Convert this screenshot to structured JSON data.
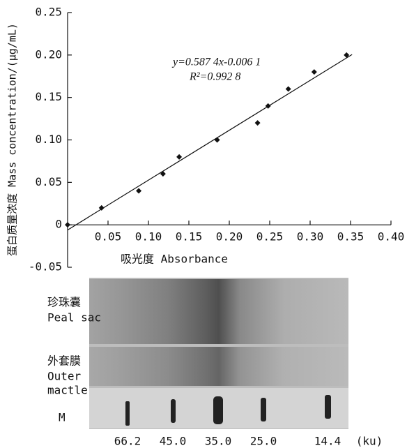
{
  "chart_data": {
    "type": "scatter",
    "xlabel": "吸光度 Absorbance",
    "ylabel": "蛋白质量浓度 Mass concentration/(μg/mL)",
    "annotations": [
      "y=0.587 4x-0.006 1",
      "R²=0.992 8"
    ],
    "fit": {
      "slope": 0.5874,
      "intercept": -0.0061
    },
    "x": [
      0,
      0.042,
      0.088,
      0.118,
      0.138,
      0.185,
      0.235,
      0.248,
      0.273,
      0.305,
      0.345
    ],
    "values": [
      0,
      0.02,
      0.04,
      0.06,
      0.08,
      0.1,
      0.12,
      0.14,
      0.16,
      0.18,
      0.2
    ],
    "color": "#111111",
    "xlim": [
      0,
      0.4
    ],
    "ylim": [
      -0.05,
      0.25
    ],
    "xticks": [
      0.05,
      {
        "value": 0.1,
        "label": "0.10"
      },
      0.15,
      {
        "value": 0.2,
        "label": "0.20"
      },
      0.25,
      {
        "value": 0.3,
        "label": "0.30"
      },
      0.35,
      {
        "value": 0.4,
        "label": "0.40"
      }
    ],
    "yticks": [
      -0.05,
      0,
      0.05,
      {
        "value": 0.1,
        "label": "0.10"
      },
      0.15,
      {
        "value": 0.2,
        "label": "0.20"
      },
      0.25
    ]
  },
  "gel": {
    "lanes": [
      [
        "珍珠囊",
        "Peal sac"
      ],
      [
        "外套膜",
        "Outer",
        "mactle"
      ],
      [
        "M"
      ]
    ],
    "markers": [
      "66.2",
      "45.0",
      "35.0",
      "25.0",
      "14.4"
    ],
    "unit": "(ku)"
  }
}
